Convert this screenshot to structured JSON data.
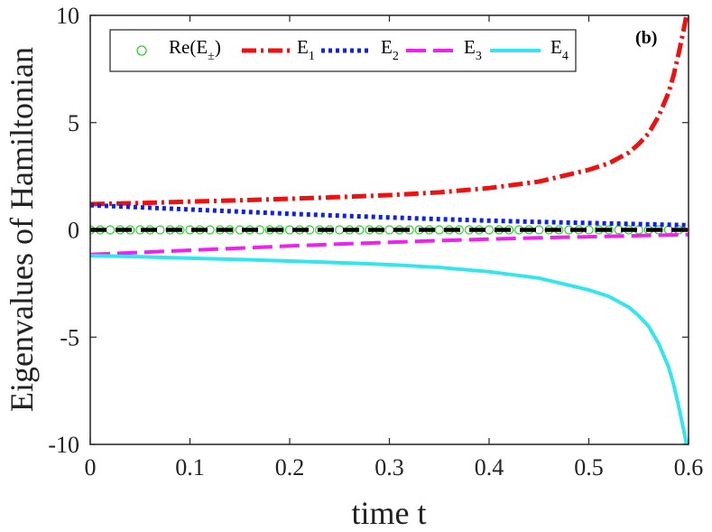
{
  "chart_data": {
    "type": "line",
    "panel_label": "(b)",
    "xlabel": "time t",
    "ylabel": "Eigenvalues of Hamiltonian",
    "xlim": [
      0,
      0.6
    ],
    "ylim": [
      -10,
      10
    ],
    "xticks": [
      0,
      0.1,
      0.2,
      0.3,
      0.4,
      0.5,
      0.6
    ],
    "xtick_labels": [
      "0",
      "0.1",
      "0.2",
      "0.3",
      "0.4",
      "0.5",
      "0.6"
    ],
    "yticks": [
      -10,
      -5,
      0,
      5,
      10
    ],
    "ytick_labels": [
      "-10",
      "-5",
      "0",
      "5",
      "10"
    ],
    "legend": {
      "placement": "top",
      "entries": [
        {
          "base": "Re(E",
          "sub": "±",
          "tail": ")"
        },
        {
          "base": "E",
          "sub": "1",
          "tail": ""
        },
        {
          "base": "E",
          "sub": "2",
          "tail": ""
        },
        {
          "base": "E",
          "sub": "3",
          "tail": ""
        },
        {
          "base": "E",
          "sub": "4",
          "tail": ""
        }
      ]
    },
    "series": [
      {
        "name": "Re(E±)",
        "style": "markers",
        "color": "#33cc33",
        "x": [
          0,
          0.01,
          0.02,
          0.03,
          0.04,
          0.05,
          0.06,
          0.07,
          0.08,
          0.09,
          0.1,
          0.11,
          0.12,
          0.13,
          0.14,
          0.15,
          0.16,
          0.17,
          0.18,
          0.19,
          0.2,
          0.21,
          0.22,
          0.23,
          0.24,
          0.25,
          0.26,
          0.27,
          0.28,
          0.29,
          0.3,
          0.31,
          0.32,
          0.33,
          0.34,
          0.35,
          0.36,
          0.37,
          0.38,
          0.39,
          0.4,
          0.41,
          0.42,
          0.43,
          0.44,
          0.45,
          0.46,
          0.47,
          0.48,
          0.49,
          0.5,
          0.51,
          0.52,
          0.53,
          0.54,
          0.55,
          0.56,
          0.57,
          0.58,
          0.59
        ],
        "y": [
          0,
          0,
          0,
          0,
          0,
          0,
          0,
          0,
          0,
          0,
          0,
          0,
          0,
          0,
          0,
          0,
          0,
          0,
          0,
          0,
          0,
          0,
          0,
          0,
          0,
          0,
          0,
          0,
          0,
          0,
          0,
          0,
          0,
          0,
          0,
          0,
          0,
          0,
          0,
          0,
          0,
          0,
          0,
          0,
          0,
          0,
          0,
          0,
          0,
          0,
          0,
          0,
          0,
          0,
          0,
          0,
          0,
          0,
          0,
          0
        ]
      },
      {
        "name": "zero",
        "style": "dashed-black",
        "color": "#000000",
        "x": [
          0,
          0.6
        ],
        "y": [
          0,
          0
        ]
      },
      {
        "name": "E1",
        "style": "dashdot",
        "color": "#ee1111",
        "x": [
          0,
          0.05,
          0.1,
          0.15,
          0.2,
          0.25,
          0.3,
          0.35,
          0.4,
          0.45,
          0.5,
          0.52,
          0.54,
          0.55,
          0.56,
          0.57,
          0.58,
          0.585,
          0.59,
          0.595,
          0.6
        ],
        "y": [
          1.2,
          1.25,
          1.32,
          1.38,
          1.45,
          1.53,
          1.62,
          1.75,
          1.95,
          2.25,
          2.8,
          3.1,
          3.6,
          4.0,
          4.5,
          5.3,
          6.4,
          7.2,
          8.2,
          9.3,
          10.5
        ]
      },
      {
        "name": "E2",
        "style": "dotted",
        "color": "#1122dd",
        "x": [
          0,
          0.05,
          0.1,
          0.15,
          0.2,
          0.25,
          0.3,
          0.35,
          0.4,
          0.45,
          0.5,
          0.55,
          0.6
        ],
        "y": [
          1.15,
          1.05,
          0.95,
          0.85,
          0.75,
          0.66,
          0.58,
          0.5,
          0.43,
          0.37,
          0.32,
          0.27,
          0.22
        ]
      },
      {
        "name": "E3",
        "style": "dashed",
        "color": "#ee22ee",
        "x": [
          0,
          0.05,
          0.1,
          0.15,
          0.2,
          0.25,
          0.3,
          0.35,
          0.4,
          0.45,
          0.5,
          0.55,
          0.6
        ],
        "y": [
          -1.15,
          -1.05,
          -0.95,
          -0.85,
          -0.75,
          -0.66,
          -0.58,
          -0.5,
          -0.43,
          -0.37,
          -0.32,
          -0.27,
          -0.22
        ]
      },
      {
        "name": "E4",
        "style": "solid",
        "color": "#33e5ee",
        "x": [
          0,
          0.05,
          0.1,
          0.15,
          0.2,
          0.25,
          0.3,
          0.35,
          0.4,
          0.45,
          0.5,
          0.52,
          0.54,
          0.55,
          0.56,
          0.57,
          0.58,
          0.585,
          0.59,
          0.595,
          0.6
        ],
        "y": [
          -1.2,
          -1.25,
          -1.32,
          -1.38,
          -1.45,
          -1.53,
          -1.62,
          -1.75,
          -1.95,
          -2.25,
          -2.8,
          -3.1,
          -3.6,
          -4.0,
          -4.5,
          -5.3,
          -6.4,
          -7.2,
          -8.2,
          -9.3,
          -10.5
        ]
      }
    ]
  }
}
